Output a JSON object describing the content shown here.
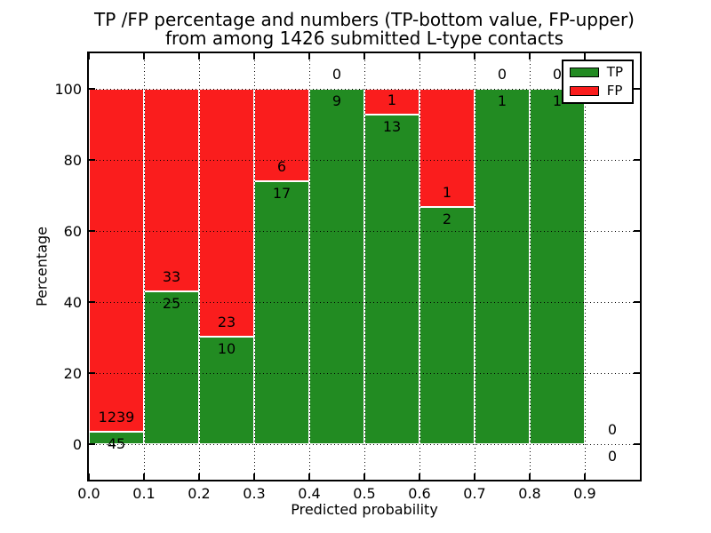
{
  "chart_data": {
    "type": "bar",
    "stacked": true,
    "title_line1": "TP /FP percentage and numbers (TP-bottom value, FP-upper)",
    "title_line2": "from among 1426 submitted L-type contacts",
    "xlabel": "Predicted probability",
    "ylabel": "Percentage",
    "xlim": [
      0.0,
      1.0
    ],
    "ylim": [
      -10,
      110
    ],
    "x_ticks": [
      "0.0",
      "0.1",
      "0.2",
      "0.3",
      "0.4",
      "0.5",
      "0.6",
      "0.7",
      "0.8",
      "0.9"
    ],
    "x_tick_values": [
      0.0,
      0.1,
      0.2,
      0.3,
      0.4,
      0.5,
      0.6,
      0.7,
      0.8,
      0.9
    ],
    "y_ticks": [
      "0",
      "20",
      "40",
      "60",
      "80",
      "100"
    ],
    "y_tick_values": [
      0,
      20,
      40,
      60,
      80,
      100
    ],
    "grid": "dotted",
    "bar_edge_color": "#ffffff",
    "legend": {
      "position": "upper right",
      "items": [
        {
          "label": "TP",
          "color": "#228b22"
        },
        {
          "label": "FP",
          "color": "#fa1d1d"
        }
      ]
    },
    "series": [
      {
        "name": "TP",
        "color": "#228b22",
        "role": "bottom"
      },
      {
        "name": "FP",
        "color": "#fa1d1d",
        "role": "top"
      }
    ],
    "bins": [
      {
        "x0": 0.0,
        "x1": 0.1,
        "tp": 45,
        "fp": 1239
      },
      {
        "x0": 0.1,
        "x1": 0.2,
        "tp": 25,
        "fp": 33
      },
      {
        "x0": 0.2,
        "x1": 0.3,
        "tp": 10,
        "fp": 23
      },
      {
        "x0": 0.3,
        "x1": 0.4,
        "tp": 17,
        "fp": 6
      },
      {
        "x0": 0.4,
        "x1": 0.5,
        "tp": 9,
        "fp": 0
      },
      {
        "x0": 0.5,
        "x1": 0.6,
        "tp": 13,
        "fp": 1
      },
      {
        "x0": 0.6,
        "x1": 0.7,
        "tp": 2,
        "fp": 1
      },
      {
        "x0": 0.7,
        "x1": 0.8,
        "tp": 1,
        "fp": 0
      },
      {
        "x0": 0.8,
        "x1": 0.9,
        "tp": 1,
        "fp": 0
      },
      {
        "x0": 0.9,
        "x1": 1.0,
        "tp": 0,
        "fp": 0
      }
    ]
  }
}
